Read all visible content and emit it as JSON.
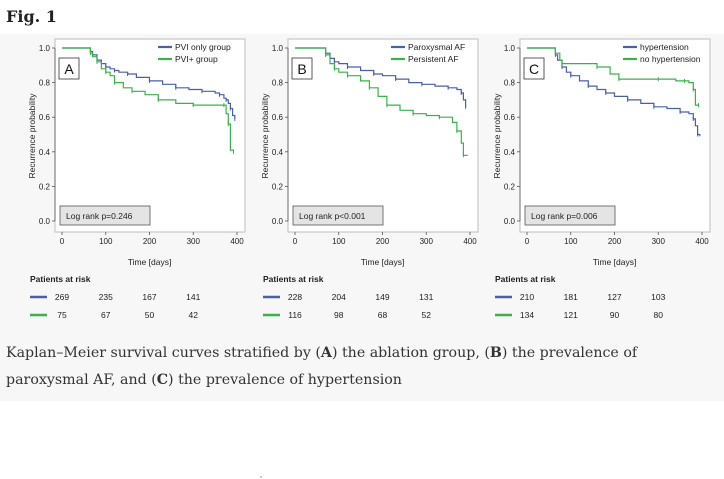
{
  "figure_label": "Fig. 1",
  "caption": {
    "p1": "Kaplan–Meier survival curves stratified by (",
    "bA": "A",
    "p2": ") the ablation group, (",
    "bB": "B",
    "p3": ") the prevalence of paroxysmal AF, and (",
    "bC": "C",
    "p4": ") the prevalence of hypertension"
  },
  "colors": {
    "series1": "#4a5fa6",
    "series2": "#3cb04a",
    "axis": "#555555",
    "text": "#222222"
  },
  "chart_data": [
    {
      "type": "line",
      "panel_letter": "A",
      "xlabel": "Time [days]",
      "ylabel": "Recurrence probability",
      "xlim": [
        -30,
        420
      ],
      "ylim": [
        -0.05,
        1.03
      ],
      "x_ticks": [
        0,
        100,
        200,
        300,
        400
      ],
      "x_tick_labels": [
        "0",
        "100",
        "200",
        "300",
        "400"
      ],
      "y_ticks": [
        0.0,
        0.2,
        0.4,
        0.6,
        0.8,
        1.0
      ],
      "y_tick_labels": [
        "0.0",
        "0.2",
        "0.4",
        "0.6",
        "0.8",
        "1.0"
      ],
      "legend": [
        "PVI only group",
        "PVI+ group"
      ],
      "logrank": "Log rank p=0.246",
      "risk_title": "Patients at risk",
      "risk_times": [
        0,
        100,
        200,
        300
      ],
      "series": [
        {
          "name": "PVI only group",
          "x": [
            0,
            60,
            65,
            70,
            80,
            90,
            100,
            110,
            120,
            130,
            150,
            170,
            200,
            230,
            260,
            290,
            320,
            350,
            360,
            370,
            375,
            380,
            385,
            390,
            395
          ],
          "y": [
            1.0,
            1.0,
            0.98,
            0.96,
            0.93,
            0.91,
            0.89,
            0.88,
            0.87,
            0.86,
            0.85,
            0.83,
            0.81,
            0.79,
            0.77,
            0.76,
            0.75,
            0.74,
            0.73,
            0.71,
            0.7,
            0.68,
            0.65,
            0.61,
            0.59
          ],
          "at_risk": [
            "269",
            "235",
            "167",
            "141"
          ]
        },
        {
          "name": "PVI+ group",
          "x": [
            0,
            60,
            65,
            70,
            80,
            90,
            100,
            110,
            120,
            140,
            160,
            190,
            220,
            260,
            300,
            340,
            370,
            375,
            380,
            385,
            392
          ],
          "y": [
            1.0,
            1.0,
            0.97,
            0.95,
            0.92,
            0.88,
            0.86,
            0.84,
            0.8,
            0.77,
            0.75,
            0.73,
            0.7,
            0.68,
            0.67,
            0.67,
            0.67,
            0.62,
            0.56,
            0.41,
            0.4
          ],
          "at_risk": [
            "75",
            "67",
            "50",
            "42"
          ]
        }
      ]
    },
    {
      "type": "line",
      "panel_letter": "B",
      "xlabel": "Time [days]",
      "ylabel": "Recurrence probability",
      "xlim": [
        -30,
        420
      ],
      "ylim": [
        -0.05,
        1.03
      ],
      "x_ticks": [
        0,
        100,
        200,
        300,
        400
      ],
      "x_tick_labels": [
        "0",
        "100",
        "200",
        "300",
        "400"
      ],
      "y_ticks": [
        0.0,
        0.2,
        0.4,
        0.6,
        0.8,
        1.0
      ],
      "y_tick_labels": [
        "0.0",
        "0.2",
        "0.4",
        "0.6",
        "0.8",
        "1.0"
      ],
      "legend": [
        "Paroxysmal AF",
        "Persistent AF"
      ],
      "logrank": "Log rank p<0.001",
      "risk_title": "Patients at risk",
      "risk_times": [
        0,
        100,
        200,
        300
      ],
      "series": [
        {
          "name": "Paroxysmal AF",
          "x": [
            0,
            60,
            70,
            80,
            90,
            100,
            120,
            150,
            180,
            200,
            230,
            260,
            290,
            320,
            350,
            370,
            380,
            385,
            390
          ],
          "y": [
            1.0,
            1.0,
            0.97,
            0.94,
            0.92,
            0.91,
            0.89,
            0.87,
            0.85,
            0.84,
            0.82,
            0.8,
            0.79,
            0.78,
            0.77,
            0.76,
            0.74,
            0.7,
            0.66
          ],
          "at_risk": [
            "228",
            "204",
            "149",
            "131"
          ]
        },
        {
          "name": "Persistent AF",
          "x": [
            0,
            60,
            70,
            80,
            90,
            100,
            120,
            150,
            170,
            190,
            210,
            240,
            270,
            300,
            330,
            360,
            370,
            380,
            385,
            395
          ],
          "y": [
            1.0,
            1.0,
            0.96,
            0.91,
            0.88,
            0.86,
            0.84,
            0.81,
            0.77,
            0.72,
            0.67,
            0.64,
            0.62,
            0.61,
            0.6,
            0.57,
            0.52,
            0.45,
            0.38,
            0.38
          ],
          "at_risk": [
            "116",
            "98",
            "68",
            "52"
          ]
        }
      ]
    },
    {
      "type": "line",
      "panel_letter": "C",
      "xlabel": "Time [days]",
      "ylabel": "Recurrence probability",
      "xlim": [
        -30,
        420
      ],
      "ylim": [
        -0.05,
        1.03
      ],
      "x_ticks": [
        0,
        100,
        200,
        300,
        400
      ],
      "x_tick_labels": [
        "0",
        "100",
        "200",
        "300",
        "400"
      ],
      "y_ticks": [
        0.0,
        0.2,
        0.4,
        0.6,
        0.8,
        1.0
      ],
      "y_tick_labels": [
        "0.0",
        "0.2",
        "0.4",
        "0.6",
        "0.8",
        "1.0"
      ],
      "legend": [
        "hypertension",
        "no hypertension"
      ],
      "logrank": "Log rank p=0.006",
      "risk_title": "Patients at risk",
      "risk_times": [
        0,
        100,
        200,
        300
      ],
      "series": [
        {
          "name": "hypertension",
          "x": [
            0,
            60,
            65,
            70,
            80,
            90,
            100,
            120,
            140,
            160,
            180,
            200,
            230,
            260,
            290,
            320,
            350,
            370,
            380,
            385,
            390,
            395
          ],
          "y": [
            1.0,
            1.0,
            0.96,
            0.93,
            0.89,
            0.86,
            0.84,
            0.81,
            0.78,
            0.76,
            0.74,
            0.72,
            0.7,
            0.68,
            0.66,
            0.65,
            0.63,
            0.62,
            0.59,
            0.55,
            0.5,
            0.49
          ],
          "at_risk": [
            "210",
            "181",
            "127",
            "103"
          ]
        },
        {
          "name": "no hypertension",
          "x": [
            0,
            60,
            65,
            75,
            80,
            130,
            160,
            190,
            210,
            260,
            300,
            340,
            360,
            370,
            380,
            385,
            392
          ],
          "y": [
            1.0,
            1.0,
            0.97,
            0.93,
            0.91,
            0.91,
            0.89,
            0.85,
            0.82,
            0.82,
            0.82,
            0.81,
            0.81,
            0.8,
            0.76,
            0.67,
            0.67
          ],
          "at_risk": [
            "134",
            "121",
            "90",
            "80"
          ]
        }
      ]
    }
  ]
}
